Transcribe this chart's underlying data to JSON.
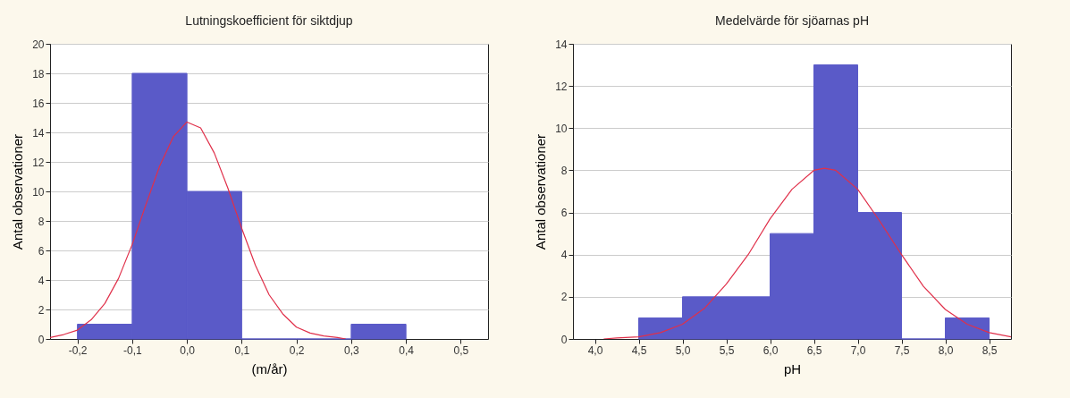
{
  "chart_data": [
    {
      "type": "histogram",
      "title": "Lutningskoefficient för siktdjup",
      "xlabel": "(m/år)",
      "ylabel": "Antal observationer",
      "bins": [
        -0.2,
        -0.1,
        0,
        0.1,
        0.2,
        0.3,
        0.4
      ],
      "values": [
        1,
        18,
        10,
        0,
        0,
        1
      ],
      "color": "#5a5ac8",
      "xlim": [
        -0.25,
        0.55
      ],
      "xticks": [
        {
          "value": -0.2,
          "label": "-0,2"
        },
        {
          "value": -0.1,
          "label": "-0,1"
        },
        {
          "value": 0,
          "label": "0,0"
        },
        {
          "value": 0.1,
          "label": "0,1"
        },
        {
          "value": 0.2,
          "label": "0,2"
        },
        {
          "value": 0.3,
          "label": "0,3"
        },
        {
          "value": 0.4,
          "label": "0,4"
        },
        {
          "value": 0.5,
          "label": "0,5"
        }
      ],
      "ylim": [
        0,
        20
      ],
      "yticks": [
        0,
        2,
        4,
        6,
        8,
        10,
        12,
        14,
        16,
        18,
        20
      ],
      "grid": "y",
      "series": [
        {
          "type": "line",
          "color": "#e0304a",
          "x": [
            -0.25,
            -0.225,
            -0.2,
            -0.175,
            -0.15,
            -0.125,
            -0.1,
            -0.075,
            -0.05,
            -0.025,
            0,
            0.025,
            0.05,
            0.075,
            0.1,
            0.125,
            0.15,
            0.175,
            0.2,
            0.225,
            0.25,
            0.275,
            0.29
          ],
          "values": [
            0.1,
            0.3,
            0.6,
            1.3,
            2.4,
            4.1,
            6.4,
            9.1,
            11.7,
            13.7,
            14.7,
            14.3,
            12.6,
            10.2,
            7.5,
            5.0,
            3.0,
            1.7,
            0.8,
            0.4,
            0.2,
            0.1,
            0
          ]
        }
      ]
    },
    {
      "type": "histogram",
      "title": "Medelvärde för sjöarnas pH",
      "xlabel": "pH",
      "ylabel": "Antal observationer",
      "bins": [
        4.5,
        5,
        5.5,
        6,
        6.5,
        7,
        7.5,
        8,
        8.5
      ],
      "values": [
        1,
        2,
        2,
        5,
        13,
        6,
        0,
        1
      ],
      "color": "#5a5ac8",
      "xlim": [
        3.75,
        8.75
      ],
      "xticks": [
        {
          "value": 4,
          "label": "4,0"
        },
        {
          "value": 4.5,
          "label": "4,5"
        },
        {
          "value": 5,
          "label": "5,0"
        },
        {
          "value": 5.5,
          "label": "5,5"
        },
        {
          "value": 6,
          "label": "6,0"
        },
        {
          "value": 6.5,
          "label": "6,5"
        },
        {
          "value": 7,
          "label": "7,0"
        },
        {
          "value": 7.5,
          "label": "7,5"
        },
        {
          "value": 8,
          "label": "8,0"
        },
        {
          "value": 8.5,
          "label": "8,5"
        }
      ],
      "ylim": [
        0,
        14
      ],
      "yticks": [
        0,
        2,
        4,
        6,
        8,
        10,
        12,
        14
      ],
      "grid": "y",
      "series": [
        {
          "type": "line",
          "color": "#e0304a",
          "x": [
            4.1,
            4.25,
            4.5,
            4.75,
            5,
            5.25,
            5.5,
            5.75,
            6,
            6.25,
            6.5,
            6.62,
            6.75,
            7,
            7.25,
            7.5,
            7.75,
            8,
            8.25,
            8.5,
            8.75
          ],
          "values": [
            0,
            0.05,
            0.1,
            0.3,
            0.7,
            1.45,
            2.6,
            4.0,
            5.7,
            7.1,
            8.0,
            8.1,
            8.0,
            7.1,
            5.6,
            4.0,
            2.5,
            1.4,
            0.7,
            0.3,
            0.1
          ]
        }
      ]
    }
  ]
}
